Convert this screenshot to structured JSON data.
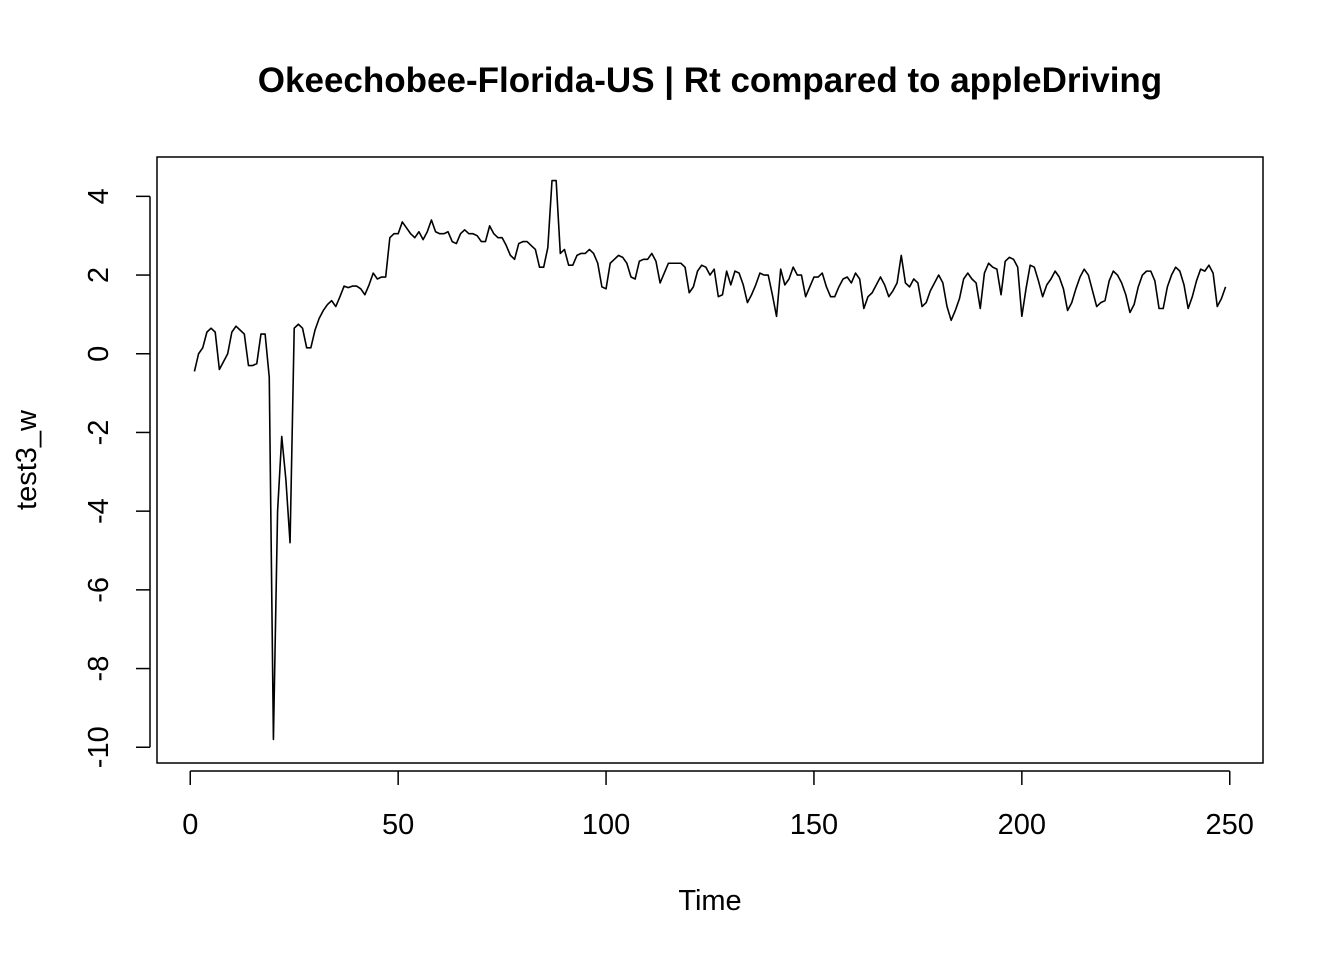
{
  "chart_data": {
    "type": "line",
    "title": "Okeechobee-Florida-US | Rt compared to appleDriving",
    "xlabel": "Time",
    "ylabel": "test3_w",
    "xlim": [
      -8,
      258
    ],
    "ylim": [
      -10.4,
      5.0
    ],
    "x_ticks": [
      0,
      50,
      100,
      150,
      200,
      250
    ],
    "y_ticks": [
      4,
      2,
      0,
      -2,
      -4,
      -6,
      -8,
      -10
    ],
    "x_tick_labels": [
      "0",
      "50",
      "100",
      "150",
      "200",
      "250"
    ],
    "y_tick_labels": [
      "4",
      "2",
      "0",
      "-2",
      "-4",
      "-6",
      "-8",
      "-10"
    ],
    "grid": false,
    "line_color": "#000000",
    "series": [
      {
        "x_start": 1,
        "values": [
          -0.45,
          0.0,
          0.15,
          0.55,
          0.65,
          0.55,
          -0.4,
          -0.2,
          0.0,
          0.55,
          0.7,
          0.6,
          0.5,
          -0.3,
          -0.3,
          -0.25,
          0.5,
          0.5,
          -0.6,
          -9.8,
          -4.0,
          -2.1,
          -3.2,
          -4.8,
          0.65,
          0.75,
          0.65,
          0.15,
          0.15,
          0.6,
          0.9,
          1.1,
          1.25,
          1.35,
          1.2,
          1.45,
          1.72,
          1.68,
          1.72,
          1.72,
          1.65,
          1.5,
          1.75,
          2.05,
          1.9,
          1.95,
          1.95,
          2.95,
          3.05,
          3.05,
          3.35,
          3.2,
          3.05,
          2.95,
          3.1,
          2.9,
          3.1,
          3.4,
          3.1,
          3.05,
          3.05,
          3.1,
          2.85,
          2.8,
          3.05,
          3.15,
          3.05,
          3.05,
          3.0,
          2.85,
          2.85,
          3.25,
          3.05,
          2.95,
          2.95,
          2.75,
          2.5,
          2.4,
          2.8,
          2.85,
          2.85,
          2.75,
          2.65,
          2.2,
          2.2,
          2.7,
          4.4,
          4.4,
          2.55,
          2.65,
          2.25,
          2.25,
          2.5,
          2.55,
          2.55,
          2.65,
          2.55,
          2.3,
          1.7,
          1.65,
          2.3,
          2.4,
          2.5,
          2.45,
          2.3,
          1.95,
          1.9,
          2.35,
          2.4,
          2.4,
          2.55,
          2.35,
          1.8,
          2.05,
          2.3,
          2.3,
          2.3,
          2.3,
          2.2,
          1.55,
          1.7,
          2.1,
          2.25,
          2.2,
          2.0,
          2.15,
          1.45,
          1.5,
          2.1,
          1.75,
          2.1,
          2.05,
          1.75,
          1.3,
          1.5,
          1.75,
          2.05,
          2.0,
          2.0,
          1.5,
          0.95,
          2.15,
          1.75,
          1.9,
          2.2,
          2.0,
          2.0,
          1.45,
          1.7,
          1.95,
          1.95,
          2.05,
          1.7,
          1.45,
          1.45,
          1.7,
          1.9,
          1.95,
          1.8,
          2.05,
          1.9,
          1.15,
          1.45,
          1.55,
          1.75,
          1.95,
          1.75,
          1.45,
          1.6,
          1.8,
          2.5,
          1.8,
          1.7,
          1.9,
          1.8,
          1.2,
          1.3,
          1.6,
          1.8,
          2.0,
          1.8,
          1.2,
          0.85,
          1.1,
          1.4,
          1.9,
          2.05,
          1.9,
          1.8,
          1.15,
          2.05,
          2.3,
          2.2,
          2.15,
          1.5,
          2.35,
          2.45,
          2.4,
          2.2,
          0.95,
          1.65,
          2.25,
          2.2,
          1.85,
          1.45,
          1.75,
          1.9,
          2.1,
          1.95,
          1.65,
          1.1,
          1.3,
          1.65,
          1.95,
          2.15,
          2.0,
          1.6,
          1.2,
          1.3,
          1.35,
          1.85,
          2.1,
          2.0,
          1.8,
          1.5,
          1.05,
          1.25,
          1.7,
          2.0,
          2.1,
          2.1,
          1.85,
          1.15,
          1.15,
          1.7,
          2.0,
          2.2,
          2.1,
          1.75,
          1.15,
          1.45,
          1.85,
          2.15,
          2.1,
          2.25,
          2.05,
          1.2,
          1.4,
          1.7
        ]
      }
    ]
  }
}
